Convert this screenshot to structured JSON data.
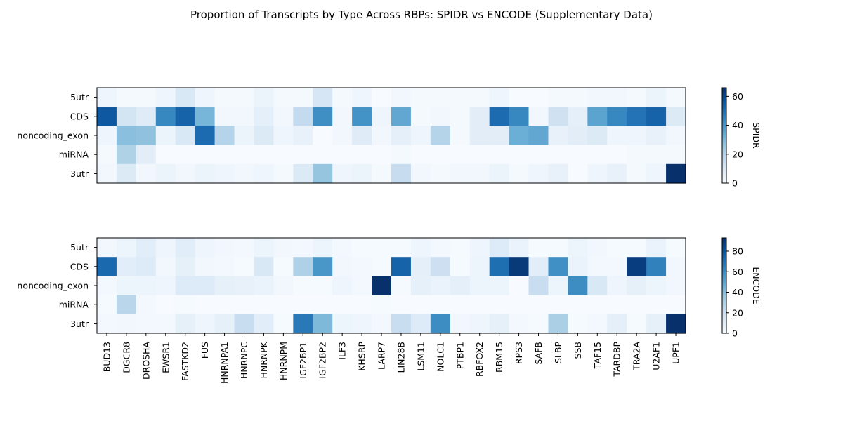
{
  "title": "Proportion of Transcripts by Type Across RBPs: SPIDR vs ENCODE (Supplementary Data)",
  "colormap": {
    "name": "Blues",
    "low": "#f7fbff",
    "high": "#08306b"
  },
  "chart_data": [
    {
      "type": "heatmap",
      "name": "SPIDR",
      "rows": [
        "5utr",
        "CDS",
        "noncoding_exon",
        "miRNA",
        "3utr"
      ],
      "columns": [
        "BUD13",
        "DGCR8",
        "DROSHA",
        "EWSR1",
        "FASTKD2",
        "FUS",
        "HNRNPA1",
        "HNRNPC",
        "HNRNPK",
        "HNRNPM",
        "IGF2BP1",
        "IGF2BP2",
        "ILF3",
        "KHSRP",
        "LARP7",
        "LIN28B",
        "LSM11",
        "NOLC1",
        "PTBP1",
        "RBFOX2",
        "RBM15",
        "RPS3",
        "SAFB",
        "SLBP",
        "SSB",
        "TAF15",
        "TARDBP",
        "TRA2A",
        "U2AF1",
        "UPF1"
      ],
      "values": [
        [
          3,
          1,
          1,
          3,
          10,
          3,
          1,
          1,
          4,
          1,
          1,
          11,
          1,
          3,
          0,
          2,
          1,
          1,
          1,
          1,
          3,
          0,
          0,
          1,
          1,
          2,
          2,
          1,
          4,
          1
        ],
        [
          56,
          12,
          8,
          44,
          53,
          31,
          2,
          2,
          6,
          2,
          17,
          42,
          2,
          41,
          3,
          35,
          1,
          2,
          1,
          7,
          51,
          44,
          2,
          13,
          6,
          36,
          44,
          49,
          53,
          9
        ],
        [
          3,
          28,
          27,
          4,
          10,
          51,
          20,
          4,
          9,
          3,
          5,
          0,
          2,
          8,
          2,
          6,
          3,
          20,
          1,
          7,
          7,
          33,
          35,
          5,
          7,
          9,
          3,
          3,
          5,
          2
        ],
        [
          1,
          21,
          7,
          0,
          0,
          0,
          0,
          0,
          0,
          0,
          0,
          0,
          0,
          0,
          0,
          1,
          0,
          0,
          0,
          0,
          0,
          0,
          0,
          0,
          0,
          0,
          0,
          1,
          1,
          1
        ],
        [
          2,
          9,
          2,
          4,
          2,
          4,
          3,
          2,
          3,
          1,
          9,
          26,
          3,
          4,
          1,
          16,
          2,
          1,
          2,
          2,
          4,
          1,
          3,
          5,
          0,
          3,
          5,
          1,
          3,
          66
        ]
      ],
      "colorbar": {
        "label": "SPIDR",
        "min": 0,
        "max": 66,
        "ticks": [
          0,
          20,
          40,
          60
        ]
      }
    },
    {
      "type": "heatmap",
      "name": "ENCODE",
      "rows": [
        "5utr",
        "CDS",
        "noncoding_exon",
        "miRNA",
        "3utr"
      ],
      "columns": [
        "BUD13",
        "DGCR8",
        "DROSHA",
        "EWSR1",
        "FASTKD2",
        "FUS",
        "HNRNPA1",
        "HNRNPC",
        "HNRNPK",
        "HNRNPM",
        "IGF2BP1",
        "IGF2BP2",
        "ILF3",
        "KHSRP",
        "LARP7",
        "LIN28B",
        "LSM11",
        "NOLC1",
        "PTBP1",
        "RBFOX2",
        "RBM15",
        "RPS3",
        "SAFB",
        "SLBP",
        "SSB",
        "TAF15",
        "TARDBP",
        "TRA2A",
        "U2AF1",
        "UPF1"
      ],
      "values": [
        [
          3,
          5,
          10,
          4,
          10,
          4,
          3,
          2,
          5,
          3,
          2,
          5,
          2,
          1,
          1,
          1,
          4,
          2,
          1,
          4,
          12,
          6,
          1,
          1,
          5,
          3,
          1,
          1,
          6,
          1
        ],
        [
          73,
          10,
          12,
          3,
          8,
          3,
          2,
          1,
          14,
          1,
          30,
          56,
          3,
          2,
          1,
          75,
          9,
          20,
          1,
          5,
          71,
          90,
          10,
          59,
          6,
          2,
          2,
          88,
          64,
          3
        ],
        [
          2,
          5,
          5,
          4,
          12,
          12,
          8,
          7,
          6,
          3,
          1,
          1,
          4,
          2,
          93,
          1,
          8,
          6,
          9,
          5,
          5,
          0,
          22,
          5,
          60,
          14,
          4,
          8,
          5,
          3
        ],
        [
          1,
          27,
          2,
          0,
          1,
          0,
          0,
          0,
          0,
          0,
          0,
          0,
          0,
          0,
          1,
          0,
          0,
          0,
          0,
          0,
          0,
          0,
          0,
          0,
          0,
          0,
          0,
          0,
          0,
          0
        ],
        [
          2,
          3,
          2,
          2,
          8,
          4,
          8,
          22,
          10,
          1,
          67,
          42,
          5,
          4,
          2,
          22,
          12,
          60,
          3,
          4,
          8,
          2,
          1,
          31,
          1,
          2,
          9,
          1,
          8,
          93
        ]
      ],
      "colorbar": {
        "label": "ENCODE",
        "min": 0,
        "max": 93,
        "ticks": [
          0,
          20,
          40,
          60,
          80
        ]
      }
    }
  ]
}
